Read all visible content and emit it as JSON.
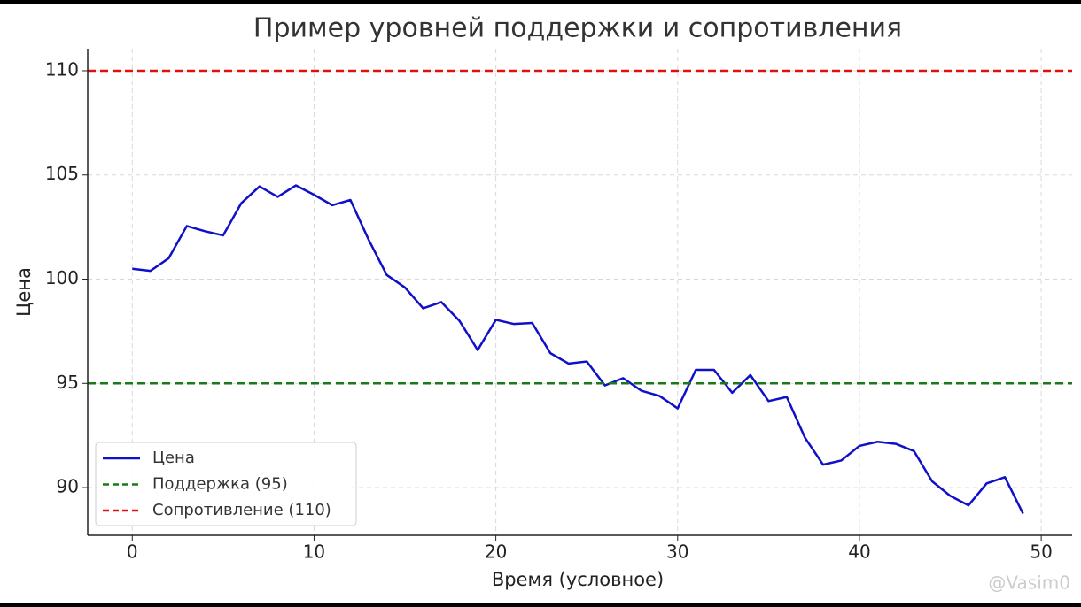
{
  "chart_data": {
    "type": "line",
    "title": "Пример уровней поддержки и сопротивления",
    "xlabel": "Время (условное)",
    "ylabel": "Цена",
    "x": [
      0,
      1,
      2,
      3,
      4,
      5,
      6,
      7,
      8,
      9,
      10,
      11,
      12,
      13,
      14,
      15,
      16,
      17,
      18,
      19,
      20,
      21,
      22,
      23,
      24,
      25,
      26,
      27,
      28,
      29,
      30,
      31,
      32,
      33,
      34,
      35,
      36,
      37,
      38,
      39,
      40,
      41,
      42,
      43,
      44,
      45,
      46,
      47,
      48,
      49
    ],
    "series": [
      {
        "name": "Цена",
        "color": "#1010c8",
        "values": [
          100.5,
          100.4,
          101.0,
          102.55,
          102.3,
          102.1,
          103.65,
          104.45,
          103.95,
          104.5,
          104.05,
          103.55,
          103.8,
          101.9,
          100.2,
          99.6,
          98.6,
          98.9,
          98.0,
          96.6,
          98.05,
          97.85,
          97.9,
          96.45,
          95.95,
          96.05,
          94.9,
          95.25,
          94.65,
          94.4,
          93.8,
          95.65,
          95.65,
          94.55,
          95.4,
          94.15,
          94.35,
          92.4,
          91.1,
          91.3,
          92.0,
          92.2,
          92.1,
          91.75,
          90.3,
          89.6,
          89.15,
          90.2,
          90.5,
          88.75
        ]
      }
    ],
    "hlines": [
      {
        "name": "Поддержка (95)",
        "color": "#1a7a1a",
        "value": 95
      },
      {
        "name": "Сопротивление (110)",
        "color": "#e01010",
        "value": 110
      }
    ],
    "xlim": [
      -2.45,
      51.7
    ],
    "ylim": [
      87.71,
      111.06
    ],
    "xticks": [
      0,
      10,
      20,
      30,
      40,
      50
    ],
    "yticks": [
      90,
      95,
      100,
      105,
      110
    ],
    "grid": true,
    "legend": "lower left",
    "watermark": "@Vasim0"
  }
}
